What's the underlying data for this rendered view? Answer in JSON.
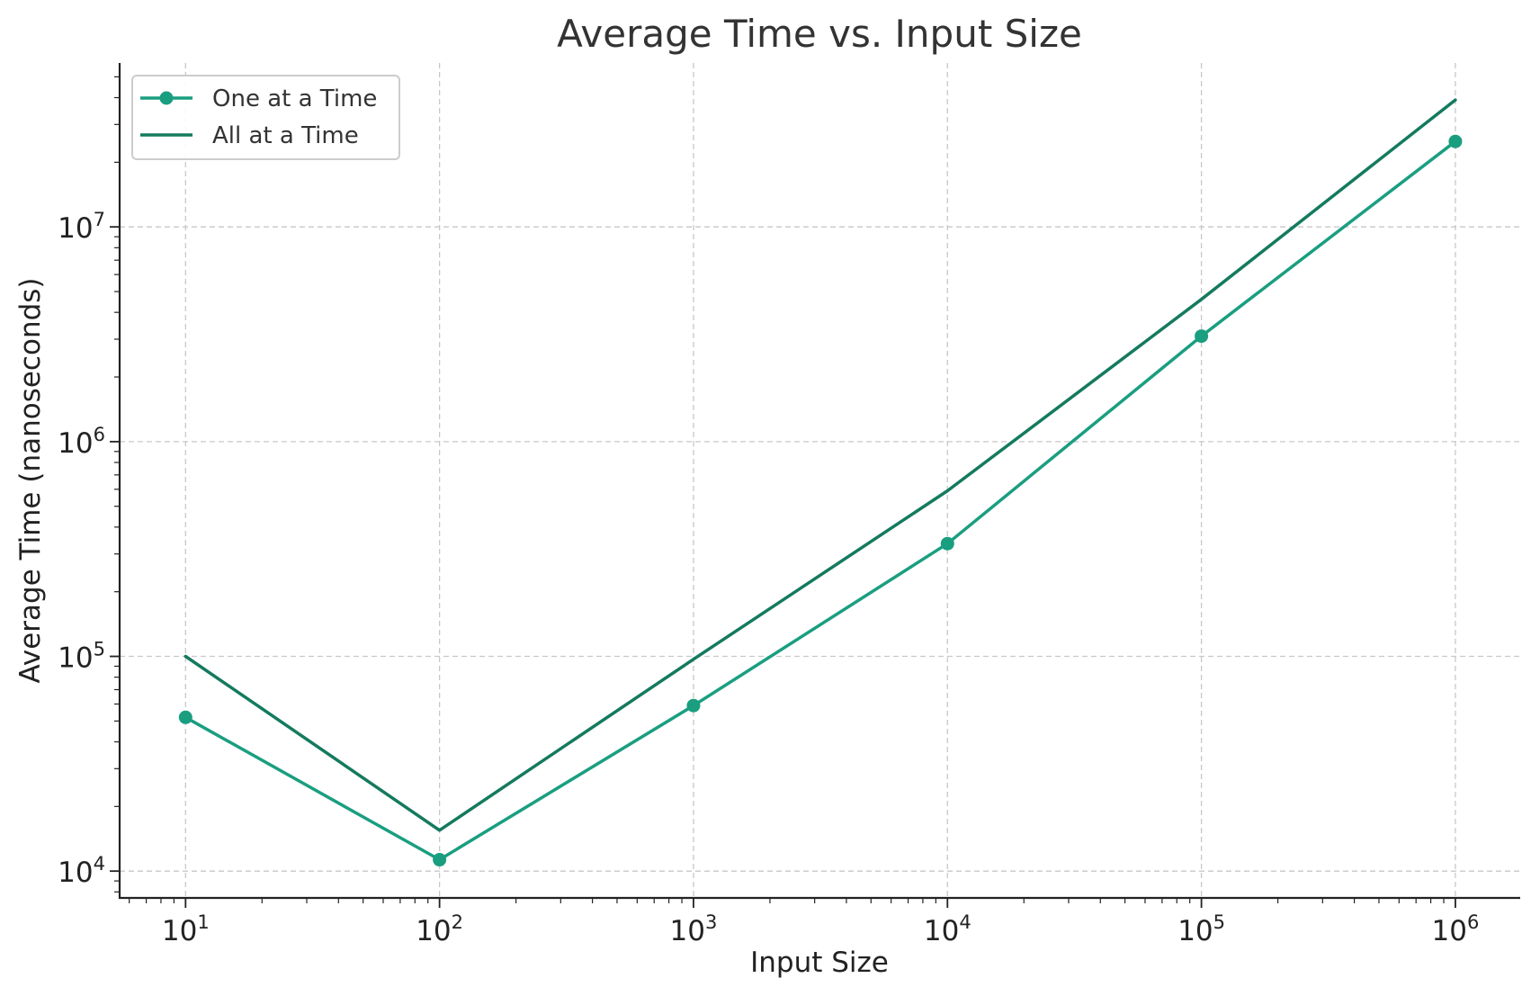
{
  "chart_data": {
    "type": "line",
    "title": "Average Time vs. Input Size",
    "xlabel": "Input Size",
    "ylabel": "Average Time (nanoseconds)",
    "x_scale": "log",
    "y_scale": "log",
    "xlim": [
      5.5,
      1800000
    ],
    "ylim": [
      7500,
      58000000
    ],
    "x_ticks": [
      {
        "value": 10,
        "base": "10",
        "exp": "1"
      },
      {
        "value": 100,
        "base": "10",
        "exp": "2"
      },
      {
        "value": 1000,
        "base": "10",
        "exp": "3"
      },
      {
        "value": 10000,
        "base": "10",
        "exp": "4"
      },
      {
        "value": 100000,
        "base": "10",
        "exp": "5"
      },
      {
        "value": 1000000,
        "base": "10",
        "exp": "6"
      }
    ],
    "y_ticks": [
      {
        "value": 10000,
        "base": "10",
        "exp": "4"
      },
      {
        "value": 100000,
        "base": "10",
        "exp": "5"
      },
      {
        "value": 1000000,
        "base": "10",
        "exp": "6"
      },
      {
        "value": 10000000,
        "base": "10",
        "exp": "7"
      }
    ],
    "x": [
      10,
      100,
      1000,
      10000,
      100000,
      1000000
    ],
    "series": [
      {
        "name": "One at a Time",
        "values": [
          52000,
          11300,
          59000,
          335000,
          3100000,
          25000000
        ],
        "color": "#1a9e80",
        "marker": "circle"
      },
      {
        "name": "All at a Time",
        "values": [
          100000,
          15500,
          97000,
          590000,
          4600000,
          39000000
        ],
        "color": "#147a5e",
        "marker": "none"
      }
    ],
    "grid": true,
    "grid_style": "dashed",
    "legend_position": "top-left"
  }
}
